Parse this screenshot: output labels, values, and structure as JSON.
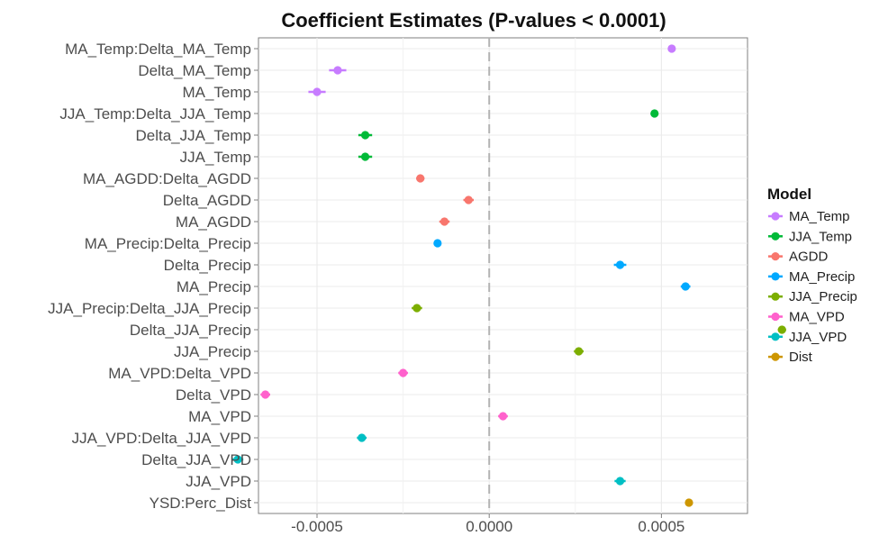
{
  "chart_data": {
    "type": "scatter",
    "title": "Coefficient Estimates (P-values < 0.0001)",
    "xlabel": "",
    "ylabel": "",
    "xlim": [
      -0.00067,
      0.00075
    ],
    "xticks": [
      -0.0005,
      0.0,
      0.0005
    ],
    "xtick_labels": [
      "-0.0005",
      "0.0000",
      "0.0005"
    ],
    "reference_line": 0.0,
    "grid": true,
    "legend_position": "right",
    "legend_title": "Model",
    "categories": [
      "MA_Temp:Delta_MA_Temp",
      "Delta_MA_Temp",
      "MA_Temp",
      "JJA_Temp:Delta_JJA_Temp",
      "Delta_JJA_Temp",
      "JJA_Temp",
      "MA_AGDD:Delta_AGDD",
      "Delta_AGDD",
      "MA_AGDD",
      "MA_Precip:Delta_Precip",
      "Delta_Precip",
      "MA_Precip",
      "JJA_Precip:Delta_JJA_Precip",
      "Delta_JJA_Precip",
      "JJA_Precip",
      "MA_VPD:Delta_VPD",
      "Delta_VPD",
      "MA_VPD",
      "JJA_VPD:Delta_JJA_VPD",
      "Delta_JJA_VPD",
      "JJA_VPD",
      "YSD:Perc_Dist"
    ],
    "series": [
      {
        "name": "MA_Temp",
        "color": "#c77cff",
        "points": [
          {
            "category": "MA_Temp:Delta_MA_Temp",
            "value": 0.00053,
            "lower": 0.000525,
            "upper": 0.000535
          },
          {
            "category": "Delta_MA_Temp",
            "value": -0.00044,
            "lower": -0.000465,
            "upper": -0.000415
          },
          {
            "category": "MA_Temp",
            "value": -0.0005,
            "lower": -0.000525,
            "upper": -0.000475
          }
        ]
      },
      {
        "name": "JJA_Temp",
        "color": "#00ba38",
        "points": [
          {
            "category": "JJA_Temp:Delta_JJA_Temp",
            "value": 0.00048,
            "lower": 0.000476,
            "upper": 0.000484
          },
          {
            "category": "Delta_JJA_Temp",
            "value": -0.00036,
            "lower": -0.00038,
            "upper": -0.00034
          },
          {
            "category": "JJA_Temp",
            "value": -0.00036,
            "lower": -0.00038,
            "upper": -0.00034
          }
        ]
      },
      {
        "name": "AGDD",
        "color": "#f8766d",
        "points": [
          {
            "category": "MA_AGDD:Delta_AGDD",
            "value": -0.0002,
            "lower": -0.000212,
            "upper": -0.000188
          },
          {
            "category": "Delta_AGDD",
            "value": -6e-05,
            "lower": -7.5e-05,
            "upper": -4.5e-05
          },
          {
            "category": "MA_AGDD",
            "value": -0.00013,
            "lower": -0.000145,
            "upper": -0.000115
          }
        ]
      },
      {
        "name": "MA_Precip",
        "color": "#00a9ff",
        "points": [
          {
            "category": "MA_Precip:Delta_Precip",
            "value": -0.00015,
            "lower": -0.000155,
            "upper": -0.000145
          },
          {
            "category": "Delta_Precip",
            "value": 0.00038,
            "lower": 0.000362,
            "upper": 0.000398
          },
          {
            "category": "MA_Precip",
            "value": 0.00057,
            "lower": 0.000556,
            "upper": 0.000584
          }
        ]
      },
      {
        "name": "JJA_Precip",
        "color": "#7cae00",
        "points": [
          {
            "category": "JJA_Precip:Delta_JJA_Precip",
            "value": -0.00021,
            "lower": -0.000225,
            "upper": -0.000195
          },
          {
            "category": "Delta_JJA_Precip",
            "value": 0.00085,
            "lower": 0.000838,
            "upper": 0.000862
          },
          {
            "category": "JJA_Precip",
            "value": 0.00026,
            "lower": 0.000246,
            "upper": 0.000274
          }
        ]
      },
      {
        "name": "MA_VPD",
        "color": "#ff61cc",
        "points": [
          {
            "category": "MA_VPD:Delta_VPD",
            "value": -0.00025,
            "lower": -0.000264,
            "upper": -0.000236
          },
          {
            "category": "Delta_VPD",
            "value": -0.00065,
            "lower": -0.000664,
            "upper": -0.000636
          },
          {
            "category": "MA_VPD",
            "value": 4e-05,
            "lower": 2.6e-05,
            "upper": 5.4e-05
          }
        ]
      },
      {
        "name": "JJA_VPD",
        "color": "#00bfc4",
        "points": [
          {
            "category": "JJA_VPD:Delta_JJA_VPD",
            "value": -0.00037,
            "lower": -0.000384,
            "upper": -0.000356
          },
          {
            "category": "Delta_JJA_VPD",
            "value": -0.00073,
            "lower": -0.000746,
            "upper": -0.000714
          },
          {
            "category": "JJA_VPD",
            "value": 0.00038,
            "lower": 0.000364,
            "upper": 0.000396
          }
        ]
      },
      {
        "name": "Dist",
        "color": "#cd9600",
        "points": [
          {
            "category": "YSD:Perc_Dist",
            "value": 0.00058,
            "lower": 0.000575,
            "upper": 0.000585
          }
        ]
      }
    ]
  }
}
